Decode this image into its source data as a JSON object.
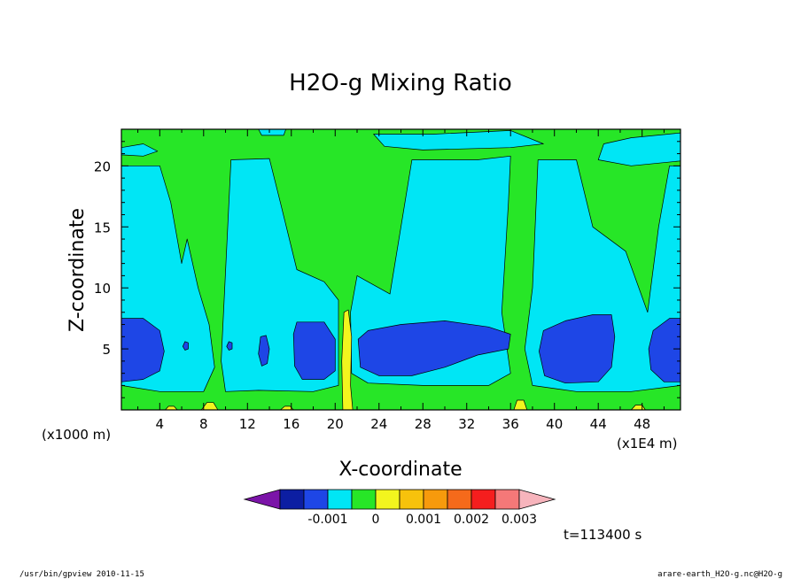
{
  "chart_data": {
    "type": "heatmap",
    "title": "H2O-g Mixing Ratio",
    "xlabel": "X-coordinate",
    "ylabel": "Z-coordinate",
    "x_unit": "(x1E4 m)",
    "y_unit": "(x1000 m)",
    "xlim": [
      0.5,
      51.5
    ],
    "ylim": [
      0,
      23
    ],
    "x_ticks": [
      "4",
      "8",
      "12",
      "16",
      "20",
      "24",
      "28",
      "32",
      "36",
      "40",
      "44",
      "48"
    ],
    "y_ticks": [
      "5",
      "10",
      "15",
      "20"
    ],
    "colorbar": {
      "colors": [
        "#7b14a8",
        "#0c1ea2",
        "#1e46e6",
        "#00e6f5",
        "#27e627",
        "#f2f51e",
        "#f7c20c",
        "#f79a0c",
        "#f56a1b",
        "#f51e1e",
        "#f57878",
        "#f7b4bc"
      ],
      "labels": [
        "-0.001",
        "0",
        "0.001",
        "0.002",
        "0.003"
      ]
    },
    "time_label": "t=113400 s",
    "regions": [
      {
        "level": "-0.0005",
        "color": "#00e6f5",
        "points": [
          [
            0.5,
            20
          ],
          [
            4,
            20
          ],
          [
            5,
            17
          ],
          [
            6,
            12
          ],
          [
            6.5,
            14
          ],
          [
            7.5,
            10
          ],
          [
            8.5,
            7
          ],
          [
            9,
            3.5
          ],
          [
            8,
            1.5
          ],
          [
            4,
            1.5
          ],
          [
            0.5,
            2
          ]
        ]
      },
      {
        "level": "-0.0005",
        "color": "#00e6f5",
        "points": [
          [
            10.5,
            20.5
          ],
          [
            14,
            20.6
          ],
          [
            15,
            17
          ],
          [
            16.5,
            11.5
          ],
          [
            19,
            10.5
          ],
          [
            20.3,
            9
          ],
          [
            20.3,
            2
          ],
          [
            18,
            1.5
          ],
          [
            13,
            1.6
          ],
          [
            10,
            1.5
          ],
          [
            9.6,
            4
          ]
        ]
      },
      {
        "level": "-0.0005",
        "color": "#00e6f5",
        "points": [
          [
            22,
            11
          ],
          [
            25,
            9.5
          ],
          [
            27,
            20.5
          ],
          [
            33,
            20.5
          ],
          [
            36,
            20.8
          ],
          [
            35.8,
            17
          ],
          [
            35.2,
            8
          ],
          [
            36,
            3
          ],
          [
            34,
            2
          ],
          [
            28,
            2
          ],
          [
            23,
            2.2
          ],
          [
            21.5,
            3
          ],
          [
            21.4,
            8
          ]
        ]
      },
      {
        "level": "-0.0005",
        "color": "#00e6f5",
        "points": [
          [
            38.5,
            20.5
          ],
          [
            42,
            20.5
          ],
          [
            43.5,
            15
          ],
          [
            46.5,
            13
          ],
          [
            48.5,
            8
          ],
          [
            49.5,
            15
          ],
          [
            50.5,
            20
          ],
          [
            51.5,
            20
          ],
          [
            51.5,
            2
          ],
          [
            47,
            1.5
          ],
          [
            42,
            1.5
          ],
          [
            38,
            2
          ],
          [
            37.3,
            5
          ],
          [
            38,
            10
          ]
        ]
      },
      {
        "level": "-0.0005",
        "color": "#00e6f5",
        "points": [
          [
            0.5,
            21.5
          ],
          [
            2.5,
            21.8
          ],
          [
            3.8,
            21.2
          ],
          [
            2.5,
            20.8
          ],
          [
            0.5,
            20.9
          ]
        ]
      },
      {
        "level": "-0.0005",
        "color": "#00e6f5",
        "points": [
          [
            13,
            23
          ],
          [
            15.5,
            23
          ],
          [
            15.3,
            22.5
          ],
          [
            13.3,
            22.5
          ]
        ]
      },
      {
        "level": "-0.0005",
        "color": "#00e6f5",
        "points": [
          [
            23.5,
            22.6
          ],
          [
            29,
            22.6
          ],
          [
            36,
            22.9
          ],
          [
            39,
            21.8
          ],
          [
            36,
            21.5
          ],
          [
            28,
            21.3
          ],
          [
            24.5,
            21.6
          ]
        ]
      },
      {
        "level": "-0.0005",
        "color": "#00e6f5",
        "points": [
          [
            44,
            20.5
          ],
          [
            47,
            20
          ],
          [
            51.5,
            20.4
          ],
          [
            51.5,
            22.7
          ],
          [
            47,
            22.3
          ],
          [
            44.5,
            21.8
          ]
        ]
      },
      {
        "level": "-0.001",
        "color": "#1e46e6",
        "points": [
          [
            0.5,
            7.5
          ],
          [
            2.5,
            7.5
          ],
          [
            4,
            6.5
          ],
          [
            4.4,
            4.8
          ],
          [
            4,
            3.2
          ],
          [
            2.5,
            2.5
          ],
          [
            0.5,
            2.3
          ]
        ]
      },
      {
        "level": "-0.001",
        "color": "#1e46e6",
        "points": [
          [
            16.5,
            7.2
          ],
          [
            19,
            7.2
          ],
          [
            20,
            5.8
          ],
          [
            20,
            3.2
          ],
          [
            19,
            2.5
          ],
          [
            17,
            2.5
          ],
          [
            16.3,
            3.6
          ],
          [
            16.2,
            6.2
          ]
        ]
      },
      {
        "level": "-0.001",
        "color": "#1e46e6",
        "points": [
          [
            23,
            6.5
          ],
          [
            26,
            7
          ],
          [
            30,
            7.3
          ],
          [
            34,
            6.8
          ],
          [
            36,
            6.2
          ],
          [
            35.8,
            5
          ],
          [
            33,
            4.5
          ],
          [
            30,
            3.5
          ],
          [
            27,
            2.8
          ],
          [
            24,
            2.8
          ],
          [
            22.3,
            3.5
          ],
          [
            22.1,
            5.8
          ]
        ]
      },
      {
        "level": "-0.001",
        "color": "#1e46e6",
        "points": [
          [
            39,
            6.5
          ],
          [
            41,
            7.3
          ],
          [
            43.5,
            7.8
          ],
          [
            45.2,
            7.8
          ],
          [
            45.5,
            6
          ],
          [
            45.2,
            3.5
          ],
          [
            44,
            2.3
          ],
          [
            41,
            2.2
          ],
          [
            39.1,
            2.8
          ],
          [
            38.6,
            4.8
          ]
        ]
      },
      {
        "level": "-0.001",
        "color": "#1e46e6",
        "points": [
          [
            49,
            6.5
          ],
          [
            50.5,
            7.5
          ],
          [
            51.5,
            7.5
          ],
          [
            51.5,
            2.3
          ],
          [
            50,
            2.3
          ],
          [
            48.8,
            3.3
          ],
          [
            48.6,
            5
          ]
        ]
      },
      {
        "level": "-0.001",
        "color": "#1e46e6",
        "points": [
          [
            13.2,
            6
          ],
          [
            13.7,
            6.1
          ],
          [
            14,
            5
          ],
          [
            13.8,
            3.8
          ],
          [
            13.3,
            3.6
          ],
          [
            13,
            4.6
          ]
        ]
      },
      {
        "level": "-0.001",
        "color": "#1e46e6",
        "points": [
          [
            6.3,
            5.6
          ],
          [
            6.6,
            5.5
          ],
          [
            6.6,
            5
          ],
          [
            6.3,
            4.9
          ],
          [
            6.1,
            5.2
          ]
        ]
      },
      {
        "level": "-0.001",
        "color": "#1e46e6",
        "points": [
          [
            10.3,
            5.6
          ],
          [
            10.6,
            5.5
          ],
          [
            10.6,
            5
          ],
          [
            10.3,
            4.9
          ],
          [
            10.1,
            5.2
          ]
        ]
      },
      {
        "level": "0.0005",
        "color": "#f2f51e",
        "points": [
          [
            20.7,
            0
          ],
          [
            20.6,
            4
          ],
          [
            20.8,
            8
          ],
          [
            21.2,
            8.2
          ],
          [
            21.5,
            6
          ],
          [
            21.4,
            2
          ],
          [
            21.6,
            0
          ]
        ]
      },
      {
        "level": "0.0005",
        "color": "#f2f51e",
        "points": [
          [
            36.3,
            0
          ],
          [
            36.6,
            0.8
          ],
          [
            37.2,
            0.8
          ],
          [
            37.5,
            0
          ]
        ]
      },
      {
        "level": "0.0005",
        "color": "#f2f51e",
        "points": [
          [
            7.8,
            0
          ],
          [
            8.3,
            0.6
          ],
          [
            8.9,
            0.6
          ],
          [
            9.3,
            0
          ]
        ]
      },
      {
        "level": "0.0005",
        "color": "#f2f51e",
        "points": [
          [
            4.5,
            0
          ],
          [
            4.8,
            0.3
          ],
          [
            5.3,
            0.3
          ],
          [
            5.6,
            0
          ]
        ]
      },
      {
        "level": "0.0005",
        "color": "#f2f51e",
        "points": [
          [
            15,
            0
          ],
          [
            15.4,
            0.3
          ],
          [
            15.9,
            0.3
          ],
          [
            16.2,
            0
          ]
        ]
      },
      {
        "level": "0.0005",
        "color": "#f2f51e",
        "points": [
          [
            47,
            0
          ],
          [
            47.4,
            0.4
          ],
          [
            48,
            0.4
          ],
          [
            48.3,
            0
          ]
        ]
      }
    ]
  },
  "footer": {
    "left": "/usr/bin/gpview   2010-11-15",
    "right": "arare-earth_H2O-g.nc@H2O-g"
  }
}
